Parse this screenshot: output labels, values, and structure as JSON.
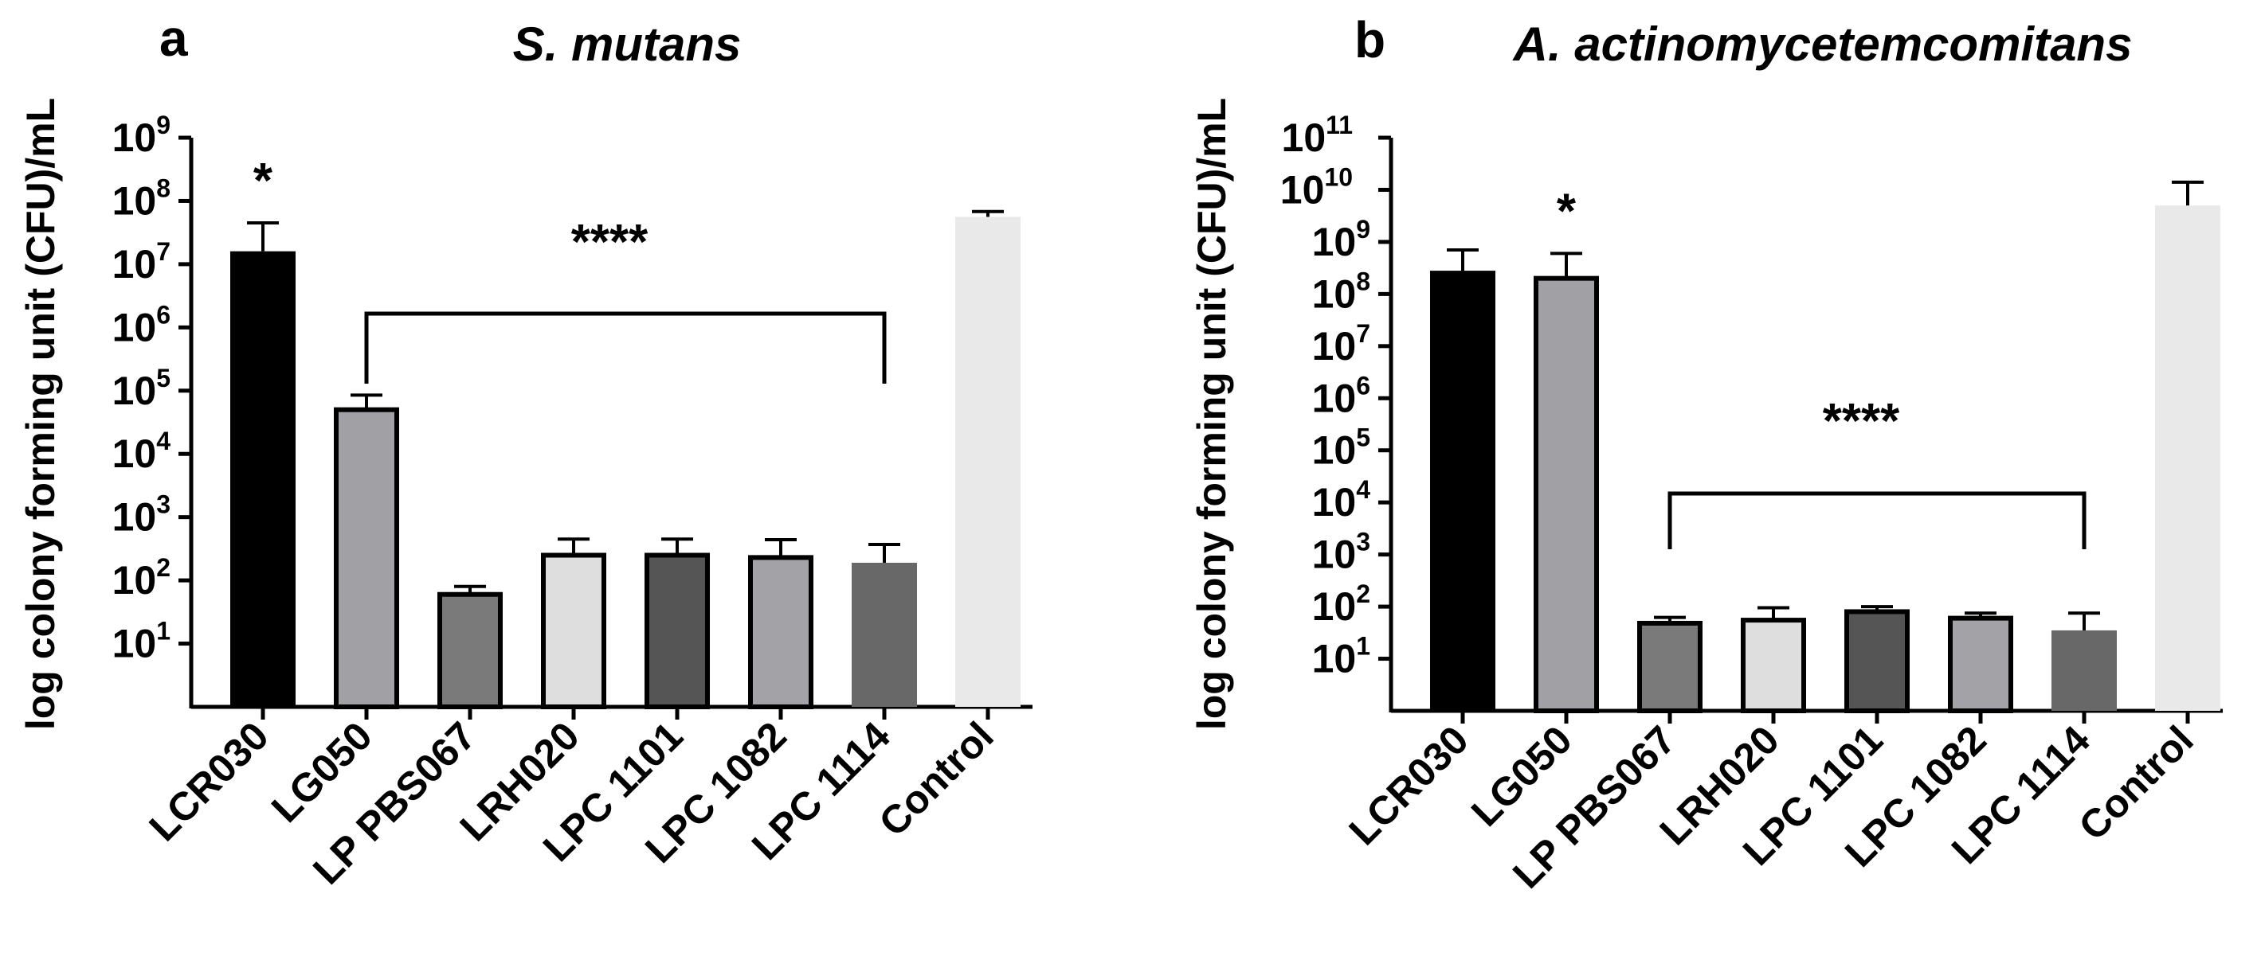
{
  "chart_data": [
    {
      "type": "bar",
      "panel": "a",
      "title": "S. mutans",
      "ylabel": "log colony forming unit (CFU)/mL",
      "xlabel": "",
      "yscale": "log",
      "ylim_exp": [
        0,
        9
      ],
      "yticks_exp": [
        1,
        2,
        3,
        4,
        5,
        6,
        7,
        8,
        9
      ],
      "categories": [
        "LCR030",
        "LG050",
        "LP PBS067",
        "LRH020",
        "LPC 1101",
        "LPC 1082",
        "LPC 1114",
        "Control"
      ],
      "values": [
        16000000,
        50000,
        60,
        250,
        250,
        230,
        190,
        56000000
      ],
      "errors_upper": [
        45000000,
        85000,
        80,
        450,
        450,
        440,
        370,
        68000000
      ],
      "bar_colors": [
        "#000000",
        "#a1a1a5",
        "#7a7a7a",
        "#dedede",
        "#555555",
        "#a3a3a7",
        "#686868",
        "#e9e9e9"
      ],
      "bar_outlined": [
        false,
        true,
        true,
        true,
        true,
        true,
        false,
        false
      ],
      "significance": [
        {
          "label": "*",
          "bar": 0
        },
        {
          "label": "****",
          "from": 1,
          "to": 6
        }
      ]
    },
    {
      "type": "bar",
      "panel": "b",
      "title": "A. actinomycetemcomitans",
      "ylabel": "log colony forming unit (CFU)/mL",
      "xlabel": "",
      "yscale": "log",
      "ylim_exp": [
        0,
        11
      ],
      "yticks_exp": [
        1,
        2,
        3,
        4,
        5,
        6,
        7,
        8,
        9,
        10,
        11
      ],
      "categories": [
        "LCR030",
        "LG050",
        "LP PBS067",
        "LRH020",
        "LPC 1101",
        "LPC 1082",
        "LPC 1114",
        "Control"
      ],
      "values": [
        280000000,
        200000000,
        48,
        55,
        80,
        60,
        35,
        5000000000
      ],
      "errors_upper": [
        700000000,
        600000000,
        62,
        95,
        100,
        75,
        75,
        14000000000
      ],
      "bar_colors": [
        "#000000",
        "#a1a1a5",
        "#7a7a7a",
        "#dedede",
        "#555555",
        "#a3a3a7",
        "#686868",
        "#e9e9e9"
      ],
      "bar_outlined": [
        false,
        true,
        true,
        true,
        true,
        true,
        false,
        false
      ],
      "significance": [
        {
          "label": "*",
          "bar": 1
        },
        {
          "label": "****",
          "from": 2,
          "to": 6
        }
      ]
    }
  ]
}
